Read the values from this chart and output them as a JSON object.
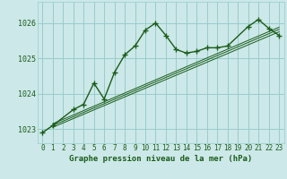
{
  "title": "Graphe pression niveau de la mer (hPa)",
  "bg_color": "#cce8e8",
  "grid_color": "#99cccc",
  "line_color": "#1a5c1a",
  "text_color": "#1a5c1a",
  "xlim": [
    -0.5,
    23.5
  ],
  "ylim": [
    1022.6,
    1026.6
  ],
  "yticks": [
    1023,
    1024,
    1025,
    1026
  ],
  "xticks": [
    0,
    1,
    2,
    3,
    4,
    5,
    6,
    7,
    8,
    9,
    10,
    11,
    12,
    13,
    14,
    15,
    16,
    17,
    18,
    19,
    20,
    21,
    22,
    23
  ],
  "series_main": {
    "x": [
      0,
      1,
      3,
      4,
      5,
      6,
      7,
      8,
      9,
      10,
      11,
      12,
      13,
      14,
      15,
      16,
      17,
      18,
      20,
      21,
      22,
      23
    ],
    "y": [
      1022.9,
      1023.1,
      1023.55,
      1023.7,
      1024.3,
      1023.85,
      1024.6,
      1025.1,
      1025.35,
      1025.8,
      1026.0,
      1025.65,
      1025.25,
      1025.15,
      1025.2,
      1025.3,
      1025.3,
      1025.35,
      1025.9,
      1026.1,
      1025.85,
      1025.65
    ]
  },
  "series_dotted_start": {
    "x": [
      0,
      1
    ],
    "y": [
      1022.9,
      1023.1
    ]
  },
  "series_trend1": {
    "x": [
      1,
      23
    ],
    "y": [
      1023.05,
      1025.75
    ]
  },
  "series_trend2": {
    "x": [
      1,
      23
    ],
    "y": [
      1023.1,
      1025.82
    ]
  },
  "series_trend3": {
    "x": [
      1,
      23
    ],
    "y": [
      1023.15,
      1025.88
    ]
  }
}
